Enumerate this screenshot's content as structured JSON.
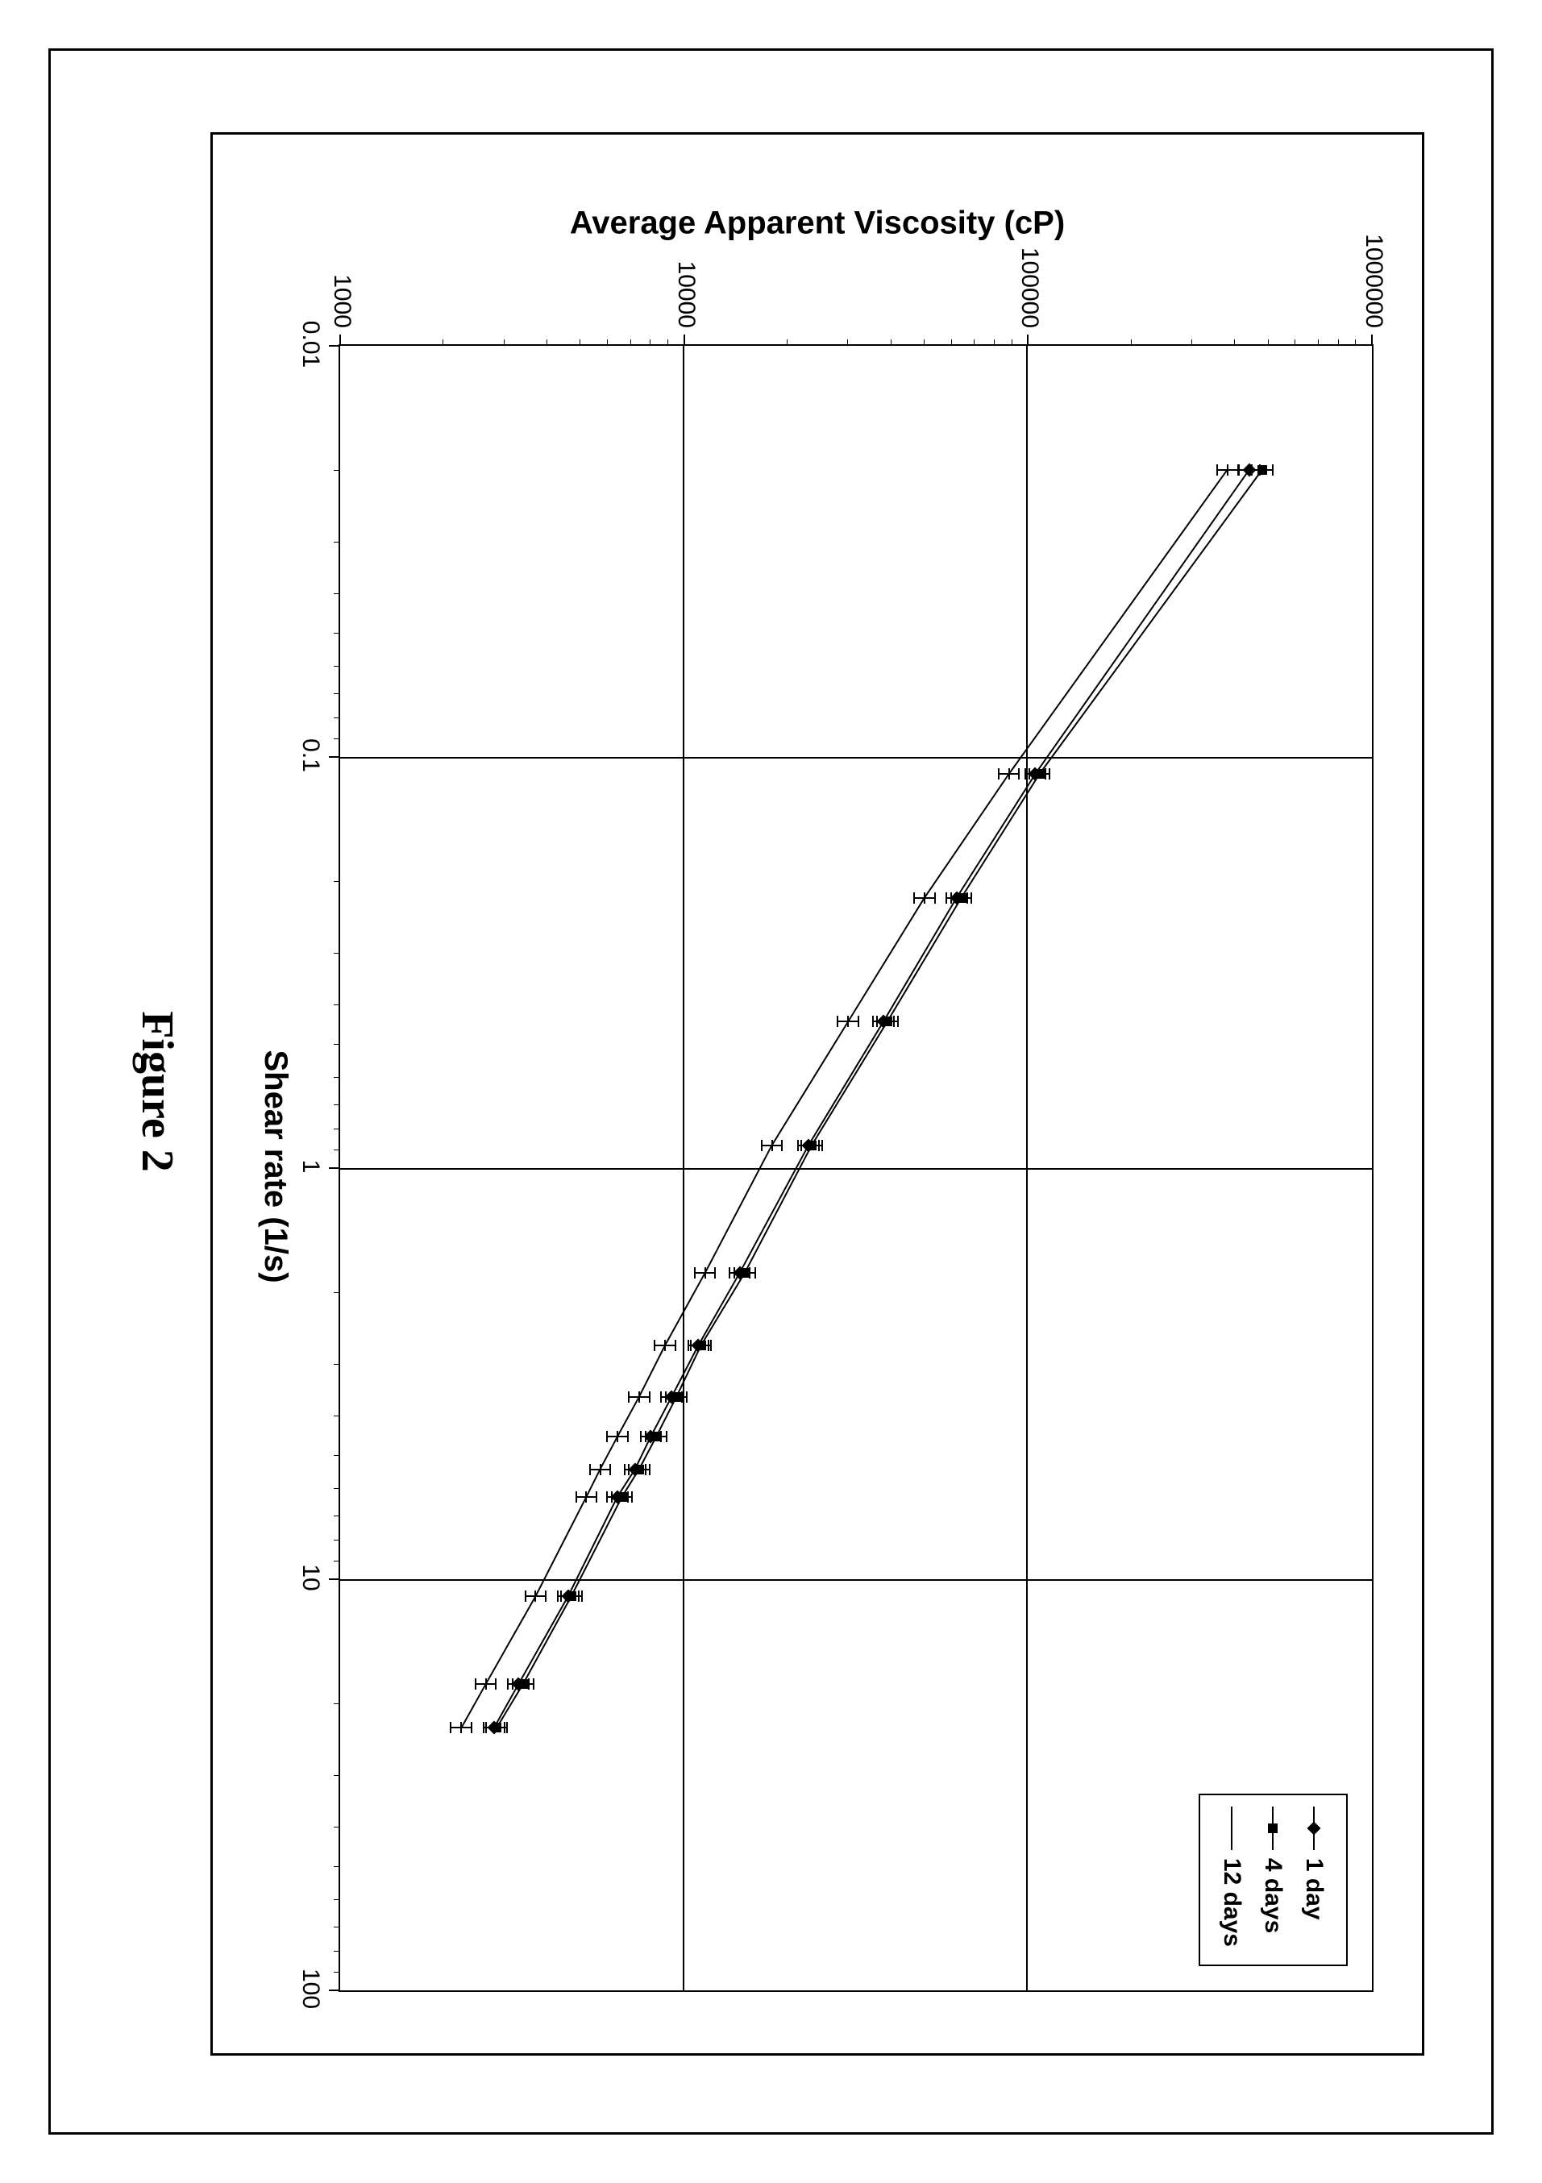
{
  "caption": "Figure 2",
  "chart": {
    "type": "line",
    "xlabel": "Shear rate (1/s)",
    "ylabel": "Average Apparent Viscosity (cP)",
    "x_scale": "log",
    "y_scale": "log",
    "xlim": [
      0.01,
      100
    ],
    "ylim": [
      1000,
      1000000
    ],
    "x_ticks": [
      0.01,
      0.1,
      1,
      10,
      100
    ],
    "x_tick_labels": [
      "0.01",
      "0.1",
      "1",
      "10",
      "100"
    ],
    "y_ticks": [
      1000,
      10000,
      100000,
      1000000
    ],
    "y_tick_labels": [
      "1000",
      "10000",
      "100000",
      "1000000"
    ],
    "background_color": "#ffffff",
    "grid_color": "#000000",
    "line_color": "#000000",
    "marker_color": "#000000",
    "tick_fontsize": 30,
    "label_fontsize": 40,
    "caption_fontsize": 56,
    "legend_fontsize": 30,
    "line_width": 2,
    "marker_size": 12,
    "error_bar_half_height": 0.03,
    "legend": {
      "position": "top-right-inside",
      "items": [
        {
          "label": "1 day",
          "marker": "diamond"
        },
        {
          "label": "4 days",
          "marker": "square"
        },
        {
          "label": "12 days",
          "marker": "cap"
        }
      ]
    },
    "series": [
      {
        "name": "1 day",
        "marker": "diamond",
        "x": [
          0.02,
          0.11,
          0.22,
          0.44,
          0.88,
          1.8,
          2.7,
          3.6,
          4.5,
          5.4,
          6.3,
          11,
          18,
          23
        ],
        "y": [
          440000,
          105000,
          62000,
          38000,
          23000,
          14500,
          11000,
          9200,
          8000,
          7200,
          6400,
          4600,
          3300,
          2800
        ]
      },
      {
        "name": "4 days",
        "marker": "square",
        "x": [
          0.02,
          0.11,
          0.22,
          0.44,
          0.88,
          1.8,
          2.7,
          3.6,
          4.5,
          5.4,
          6.3,
          11,
          18,
          23
        ],
        "y": [
          480000,
          108000,
          64000,
          39000,
          23500,
          15000,
          11200,
          9500,
          8300,
          7400,
          6600,
          4700,
          3400,
          2850
        ]
      },
      {
        "name": "12 days",
        "marker": "cap",
        "x": [
          0.02,
          0.11,
          0.22,
          0.44,
          0.88,
          1.8,
          2.7,
          3.6,
          4.5,
          5.4,
          6.3,
          11,
          18,
          23
        ],
        "y": [
          380000,
          88000,
          50000,
          30000,
          18000,
          11500,
          8800,
          7400,
          6400,
          5700,
          5200,
          3700,
          2650,
          2250
        ]
      }
    ]
  }
}
